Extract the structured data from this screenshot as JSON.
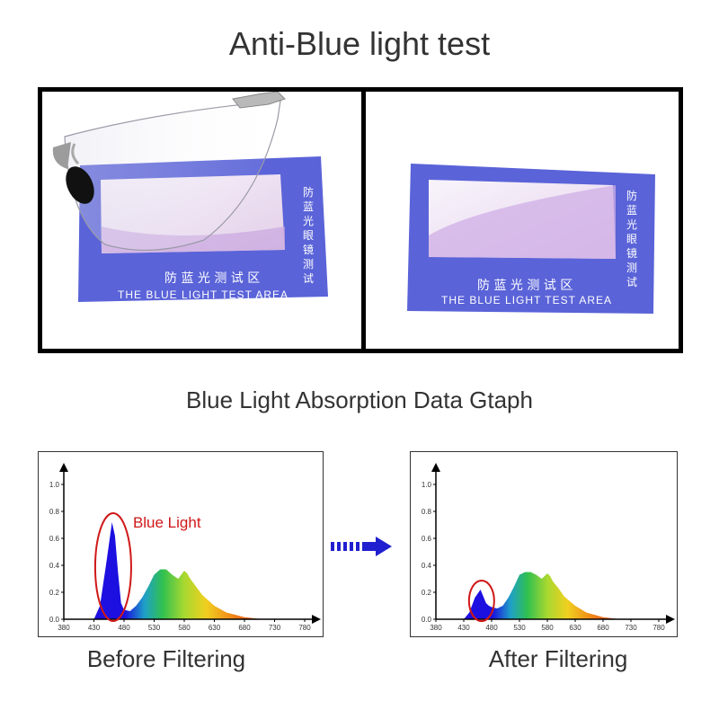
{
  "title": "Anti-Blue light test",
  "subtitle": "Blue Light Absorption Data Gtaph",
  "card": {
    "cn_bottom": "防 蓝 光 测 试 区",
    "cn_side": [
      "防",
      "蓝",
      "光",
      "眼",
      "镜",
      "测",
      "试"
    ],
    "en": "THE BLUE LIGHT TEST AREA"
  },
  "colors": {
    "card_blue": "#5a63d8",
    "peak_blue": "#1a10e0",
    "circle_red": "#d01818",
    "arrow_blue": "#2020d0"
  },
  "chart_data": [
    {
      "type": "area",
      "caption": "Before Filtering",
      "annotation": "Blue Light",
      "x_ticks": [
        380,
        430,
        480,
        530,
        580,
        630,
        680,
        730,
        780
      ],
      "y_ticks": [
        0.0,
        0.2,
        0.4,
        0.6,
        0.8,
        1.0
      ],
      "ylim": [
        0,
        1.0
      ],
      "xlim": [
        380,
        780
      ],
      "x": [
        430,
        440,
        450,
        460,
        465,
        470,
        475,
        480,
        490,
        500,
        510,
        520,
        530,
        540,
        550,
        560,
        570,
        580,
        585,
        590,
        600,
        610,
        630,
        650,
        680,
        700,
        720
      ],
      "y": [
        0.0,
        0.1,
        0.4,
        0.72,
        0.62,
        0.35,
        0.12,
        0.07,
        0.06,
        0.1,
        0.16,
        0.24,
        0.33,
        0.37,
        0.37,
        0.33,
        0.3,
        0.36,
        0.34,
        0.3,
        0.24,
        0.18,
        0.1,
        0.05,
        0.015,
        0.005,
        0.0
      ]
    },
    {
      "type": "area",
      "caption": "After Filtering",
      "x_ticks": [
        380,
        430,
        480,
        530,
        580,
        630,
        680,
        730,
        780
      ],
      "y_ticks": [
        0.0,
        0.2,
        0.4,
        0.6,
        0.8,
        1.0
      ],
      "ylim": [
        0,
        1.0
      ],
      "xlim": [
        380,
        780
      ],
      "x": [
        430,
        440,
        450,
        460,
        465,
        470,
        475,
        480,
        490,
        500,
        510,
        520,
        530,
        540,
        550,
        560,
        570,
        580,
        585,
        590,
        600,
        610,
        630,
        650,
        680,
        700,
        720
      ],
      "y": [
        0.0,
        0.05,
        0.16,
        0.22,
        0.17,
        0.12,
        0.1,
        0.09,
        0.08,
        0.1,
        0.16,
        0.24,
        0.33,
        0.35,
        0.35,
        0.33,
        0.3,
        0.34,
        0.32,
        0.28,
        0.23,
        0.17,
        0.1,
        0.05,
        0.015,
        0.005,
        0.0
      ]
    }
  ]
}
